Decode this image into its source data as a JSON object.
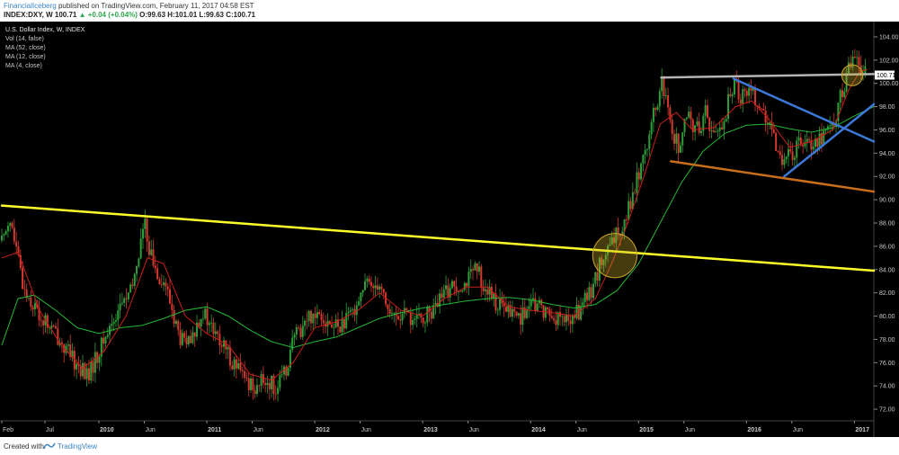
{
  "header": {
    "author": "FinancialIceberg",
    "published": "published on TradingView.com, February 11, 2017 04:58 EST",
    "symbol": "INDEX:DXY, W",
    "last": "100.71",
    "change": "+0.04 (+0.04%)",
    "ohlc": "O:99.63 H:101.01 L:99.63 C:100.71"
  },
  "legend": {
    "title": "U.S. Dollar Index, W, INDEX",
    "studies": [
      "Vol (14, false)",
      "MA (52, close)",
      "MA (12, close)",
      "MA (4, close)"
    ]
  },
  "footer": {
    "created_with": "Created with",
    "brand": "TradingView"
  },
  "colors": {
    "background": "#000000",
    "up_candle": "#2e9e3a",
    "down_candle": "#d23a2f",
    "ma52": "#25b835",
    "ma12": "#c8201c",
    "ma4": "#d89a3e",
    "yellow_trend": "#ffff2a",
    "blue_lines": "#3c78d8",
    "orange_line": "#c96f1c",
    "gray_line": "#b5b5b5",
    "price_tag": "#ffffff"
  },
  "chart_data": {
    "type": "candlestick",
    "title": "U.S. Dollar Index, W, INDEX",
    "ylim": [
      71,
      105
    ],
    "y_ticks": [
      "104.00",
      "102.00",
      "100.00",
      "98.00",
      "96.00",
      "94.00",
      "92.00",
      "90.00",
      "88.00",
      "86.00",
      "84.00",
      "82.00",
      "80.00",
      "78.00",
      "76.00",
      "74.00",
      "72.00"
    ],
    "y_tick_values": [
      104,
      102,
      100,
      98,
      96,
      94,
      92,
      90,
      88,
      86,
      84,
      82,
      80,
      78,
      76,
      74,
      72
    ],
    "x_range": [
      2009.1,
      2017.18
    ],
    "x_ticks": [
      {
        "label": "Feb",
        "t": 2009.1
      },
      {
        "label": "Jul",
        "t": 2009.5
      },
      {
        "label": "2010",
        "t": 2010.0
      },
      {
        "label": "Jun",
        "t": 2010.42
      },
      {
        "label": "2011",
        "t": 2011.0
      },
      {
        "label": "Jun",
        "t": 2011.42
      },
      {
        "label": "2012",
        "t": 2012.0
      },
      {
        "label": "Jun",
        "t": 2012.42
      },
      {
        "label": "2013",
        "t": 2013.0
      },
      {
        "label": "Jun",
        "t": 2013.42
      },
      {
        "label": "2014",
        "t": 2014.0
      },
      {
        "label": "Jun",
        "t": 2014.42
      },
      {
        "label": "2015",
        "t": 2015.0
      },
      {
        "label": "Jun",
        "t": 2015.42
      },
      {
        "label": "2016",
        "t": 2016.0
      },
      {
        "label": "Jun",
        "t": 2016.42
      },
      {
        "label": "2017",
        "t": 2017.0
      }
    ],
    "price_path": [
      [
        2009.1,
        86.5
      ],
      [
        2009.17,
        88.6
      ],
      [
        2009.3,
        82.5
      ],
      [
        2009.45,
        80.0
      ],
      [
        2009.6,
        78.5
      ],
      [
        2009.75,
        76.3
      ],
      [
        2009.9,
        74.8
      ],
      [
        2010.05,
        78.0
      ],
      [
        2010.2,
        81.0
      ],
      [
        2010.3,
        82.0
      ],
      [
        2010.42,
        88.0
      ],
      [
        2010.5,
        84.5
      ],
      [
        2010.62,
        82.5
      ],
      [
        2010.75,
        78.0
      ],
      [
        2010.85,
        77.5
      ],
      [
        2010.95,
        80.5
      ],
      [
        2011.1,
        78.0
      ],
      [
        2011.25,
        76.0
      ],
      [
        2011.35,
        74.5
      ],
      [
        2011.45,
        74.0
      ],
      [
        2011.55,
        74.5
      ],
      [
        2011.65,
        73.8
      ],
      [
        2011.72,
        75.0
      ],
      [
        2011.8,
        78.0
      ],
      [
        2011.95,
        80.0
      ],
      [
        2012.05,
        80.5
      ],
      [
        2012.15,
        79.0
      ],
      [
        2012.3,
        79.5
      ],
      [
        2012.45,
        82.5
      ],
      [
        2012.6,
        83.0
      ],
      [
        2012.7,
        80.0
      ],
      [
        2012.85,
        80.0
      ],
      [
        2012.95,
        79.5
      ],
      [
        2013.1,
        80.5
      ],
      [
        2013.25,
        82.5
      ],
      [
        2013.4,
        83.0
      ],
      [
        2013.5,
        84.0
      ],
      [
        2013.6,
        82.0
      ],
      [
        2013.75,
        80.5
      ],
      [
        2013.9,
        80.0
      ],
      [
        2014.05,
        81.0
      ],
      [
        2014.2,
        80.0
      ],
      [
        2014.35,
        79.5
      ],
      [
        2014.45,
        80.5
      ],
      [
        2014.55,
        82.0
      ],
      [
        2014.65,
        84.5
      ],
      [
        2014.75,
        86.0
      ],
      [
        2014.85,
        88.0
      ],
      [
        2014.95,
        90.5
      ],
      [
        2015.05,
        94.0
      ],
      [
        2015.15,
        97.5
      ],
      [
        2015.22,
        100.0
      ],
      [
        2015.3,
        96.0
      ],
      [
        2015.38,
        94.5
      ],
      [
        2015.45,
        97.0
      ],
      [
        2015.55,
        96.0
      ],
      [
        2015.62,
        97.5
      ],
      [
        2015.7,
        95.5
      ],
      [
        2015.78,
        96.5
      ],
      [
        2015.88,
        100.0
      ],
      [
        2015.95,
        99.0
      ],
      [
        2016.05,
        99.5
      ],
      [
        2016.15,
        97.5
      ],
      [
        2016.25,
        95.0
      ],
      [
        2016.35,
        93.5
      ],
      [
        2016.45,
        94.0
      ],
      [
        2016.5,
        95.5
      ],
      [
        2016.6,
        95.0
      ],
      [
        2016.7,
        95.5
      ],
      [
        2016.8,
        96.5
      ],
      [
        2016.88,
        99.0
      ],
      [
        2016.96,
        101.5
      ],
      [
        2017.0,
        103.0
      ],
      [
        2017.05,
        101.5
      ],
      [
        2017.1,
        100.71
      ]
    ],
    "ma52_path": [
      [
        2009.1,
        77.5
      ],
      [
        2009.25,
        81.5
      ],
      [
        2009.4,
        81.8
      ],
      [
        2009.6,
        80.5
      ],
      [
        2009.8,
        79.0
      ],
      [
        2010.0,
        78.5
      ],
      [
        2010.2,
        79.0
      ],
      [
        2010.4,
        79.2
      ],
      [
        2010.6,
        79.8
      ],
      [
        2010.8,
        80.5
      ],
      [
        2011.0,
        80.8
      ],
      [
        2011.2,
        80.0
      ],
      [
        2011.4,
        78.8
      ],
      [
        2011.6,
        77.8
      ],
      [
        2011.8,
        77.3
      ],
      [
        2012.0,
        77.8
      ],
      [
        2012.2,
        78.2
      ],
      [
        2012.4,
        79.0
      ],
      [
        2012.6,
        79.8
      ],
      [
        2012.8,
        80.3
      ],
      [
        2013.0,
        80.7
      ],
      [
        2013.2,
        81.0
      ],
      [
        2013.4,
        81.3
      ],
      [
        2013.6,
        81.5
      ],
      [
        2013.8,
        81.6
      ],
      [
        2014.0,
        81.4
      ],
      [
        2014.2,
        81.0
      ],
      [
        2014.4,
        80.7
      ],
      [
        2014.6,
        81.0
      ],
      [
        2014.8,
        82.2
      ],
      [
        2015.0,
        84.5
      ],
      [
        2015.2,
        88.0
      ],
      [
        2015.4,
        91.5
      ],
      [
        2015.6,
        94.2
      ],
      [
        2015.8,
        95.7
      ],
      [
        2016.0,
        96.4
      ],
      [
        2016.2,
        96.5
      ],
      [
        2016.4,
        96.1
      ],
      [
        2016.6,
        95.8
      ],
      [
        2016.8,
        96.2
      ],
      [
        2017.0,
        97.2
      ],
      [
        2017.18,
        98.0
      ]
    ],
    "ma12_path": [
      [
        2009.1,
        85.0
      ],
      [
        2009.25,
        85.5
      ],
      [
        2009.45,
        80.5
      ],
      [
        2009.65,
        77.5
      ],
      [
        2009.85,
        75.5
      ],
      [
        2010.05,
        77.0
      ],
      [
        2010.25,
        80.0
      ],
      [
        2010.45,
        85.0
      ],
      [
        2010.6,
        84.5
      ],
      [
        2010.8,
        80.0
      ],
      [
        2011.0,
        78.5
      ],
      [
        2011.2,
        77.5
      ],
      [
        2011.4,
        75.0
      ],
      [
        2011.6,
        74.5
      ],
      [
        2011.8,
        76.0
      ],
      [
        2012.0,
        79.0
      ],
      [
        2012.2,
        79.5
      ],
      [
        2012.4,
        80.5
      ],
      [
        2012.6,
        82.0
      ],
      [
        2012.8,
        80.5
      ],
      [
        2013.0,
        80.0
      ],
      [
        2013.2,
        81.5
      ],
      [
        2013.4,
        82.5
      ],
      [
        2013.6,
        82.5
      ],
      [
        2013.8,
        80.8
      ],
      [
        2014.0,
        80.5
      ],
      [
        2014.2,
        80.3
      ],
      [
        2014.4,
        80.0
      ],
      [
        2014.6,
        81.5
      ],
      [
        2014.75,
        84.5
      ],
      [
        2014.9,
        88.0
      ],
      [
        2015.05,
        92.0
      ],
      [
        2015.2,
        96.5
      ],
      [
        2015.35,
        97.5
      ],
      [
        2015.5,
        96.0
      ],
      [
        2015.7,
        96.2
      ],
      [
        2015.9,
        98.0
      ],
      [
        2016.05,
        98.5
      ],
      [
        2016.2,
        97.0
      ],
      [
        2016.4,
        94.5
      ],
      [
        2016.6,
        95.0
      ],
      [
        2016.8,
        96.0
      ],
      [
        2016.95,
        99.5
      ],
      [
        2017.05,
        101.0
      ],
      [
        2017.12,
        101.2
      ]
    ],
    "trendlines": [
      {
        "name": "yellow",
        "color": "#ffff2a",
        "from": [
          2009.1,
          89.5
        ],
        "to": [
          2017.18,
          83.9
        ]
      },
      {
        "name": "gray",
        "color": "#b5b5b5",
        "from": [
          2015.21,
          100.5
        ],
        "to": [
          2017.18,
          100.8
        ]
      },
      {
        "name": "blue-down",
        "color": "#3c78d8",
        "from": [
          2015.88,
          100.4
        ],
        "to": [
          2017.18,
          95.0
        ]
      },
      {
        "name": "blue-up",
        "color": "#3c78d8",
        "from": [
          2016.35,
          92.0
        ],
        "to": [
          2017.18,
          98.2
        ]
      },
      {
        "name": "orange",
        "color": "#c96f1c",
        "from": [
          2015.3,
          93.3
        ],
        "to": [
          2017.18,
          90.7
        ]
      }
    ],
    "circles": [
      {
        "t": 2014.78,
        "y": 85.2,
        "r": 1.9
      },
      {
        "t": 2016.98,
        "y": 100.7,
        "r": 0.9
      }
    ],
    "last_price": "100.71"
  }
}
